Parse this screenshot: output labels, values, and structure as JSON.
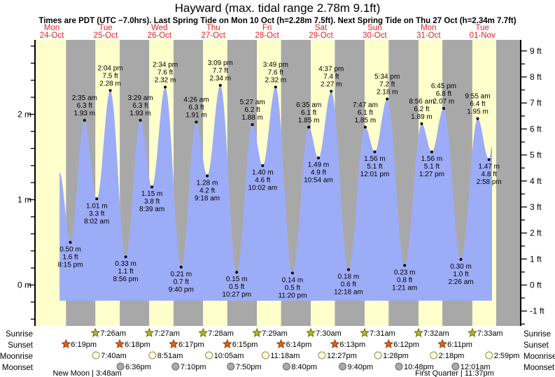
{
  "title": "Hayward (max. tidal range 2.78m 9.1ft)",
  "subtitle": "Times are PDT (UTC −7.0hrs). Last Spring Tide on Mon 10 Oct (h=2.28m 7.5ft). Next Spring Tide on Thu 27 Oct (h=2.34m 7.7ft)",
  "days": [
    {
      "name": "Mon",
      "date": "24-Oct"
    },
    {
      "name": "Tue",
      "date": "25-Oct"
    },
    {
      "name": "Wed",
      "date": "26-Oct"
    },
    {
      "name": "Thu",
      "date": "27-Oct"
    },
    {
      "name": "Fri",
      "date": "28-Oct"
    },
    {
      "name": "Sat",
      "date": "29-Oct"
    },
    {
      "name": "Sun",
      "date": "30-Oct"
    },
    {
      "name": "Mon",
      "date": "31-Oct"
    },
    {
      "name": "Tue",
      "date": "01-Nov"
    }
  ],
  "axes": {
    "left_labels": [
      "0 m",
      "1 m",
      "2 m"
    ],
    "left_values_m": [
      0,
      1,
      2
    ],
    "right_labels": [
      "-1 ft",
      "0 ft",
      "1 ft",
      "2 ft",
      "3 ft",
      "4 ft",
      "5 ft",
      "6 ft",
      "7 ft",
      "8 ft",
      "9 ft"
    ],
    "right_values_ft": [
      -1,
      0,
      1,
      2,
      3,
      4,
      5,
      6,
      7,
      8,
      9
    ]
  },
  "chart_data": {
    "type": "area",
    "title": "Tide height curve for Hayward, Mon 24-Oct through Tue 01-Nov",
    "ylabel_left": "meters",
    "ylabel_right": "feet",
    "ylim_m": [
      -0.47,
      2.87
    ],
    "baseline_m": -0.184,
    "curve_start": {
      "th": 15.43,
      "m": 1.32
    },
    "curve_end": {
      "th": 208.3,
      "m": 1.62
    },
    "extrema": [
      {
        "kind": "low",
        "th": 20.25,
        "m": 0.5,
        "lines": [
          "0.50 m",
          "1.6 ft",
          "8:15 pm"
        ]
      },
      {
        "kind": "high",
        "th": 26.583,
        "m": 1.93,
        "lines": [
          "2:35 am",
          "6.3 ft",
          "1.93 m"
        ]
      },
      {
        "kind": "low",
        "th": 32.033,
        "m": 1.01,
        "lines": [
          "1.01 m",
          "3.3 ft",
          "8:02 am"
        ]
      },
      {
        "kind": "high",
        "th": 38.067,
        "m": 2.28,
        "lines": [
          "2:04 pm",
          "7.5 ft",
          "2.28 m"
        ]
      },
      {
        "kind": "low",
        "th": 44.933,
        "m": 0.33,
        "lines": [
          "0.33 m",
          "1.1 ft",
          "8:56 pm"
        ]
      },
      {
        "kind": "high",
        "th": 51.483,
        "m": 1.93,
        "lines": [
          "3:29 am",
          "6.3 ft",
          "1.93 m"
        ]
      },
      {
        "kind": "low",
        "th": 56.65,
        "m": 1.15,
        "lines": [
          "1.15 m",
          "3.8 ft",
          "8:39 am"
        ]
      },
      {
        "kind": "high",
        "th": 62.567,
        "m": 2.32,
        "lines": [
          "2:34 pm",
          "7.6 ft",
          "2.32 m"
        ]
      },
      {
        "kind": "low",
        "th": 69.667,
        "m": 0.21,
        "lines": [
          "0.21 m",
          "0.7 ft",
          "9:40 pm"
        ]
      },
      {
        "kind": "high",
        "th": 76.433,
        "m": 1.91,
        "lines": [
          "4:26 am",
          "6.3 ft",
          "1.91 m"
        ]
      },
      {
        "kind": "low",
        "th": 81.3,
        "m": 1.28,
        "lines": [
          "1.28 m",
          "4.2 ft",
          "9:18 am"
        ]
      },
      {
        "kind": "high",
        "th": 87.15,
        "m": 2.34,
        "lines": [
          "3:09 pm",
          "7.7 ft",
          "2.34 m"
        ]
      },
      {
        "kind": "low",
        "th": 94.45,
        "m": 0.15,
        "lines": [
          "0.15 m",
          "0.5 ft",
          "10:27 pm"
        ]
      },
      {
        "kind": "high",
        "th": 101.45,
        "m": 1.88,
        "lines": [
          "5:27 am",
          "6.2 ft",
          "1.88 m"
        ]
      },
      {
        "kind": "low",
        "th": 106.033,
        "m": 1.4,
        "lines": [
          "1.40 m",
          "4.6 ft",
          "10:02 am"
        ]
      },
      {
        "kind": "high",
        "th": 111.817,
        "m": 2.32,
        "lines": [
          "3:49 pm",
          "7.6 ft",
          "2.32 m"
        ]
      },
      {
        "kind": "low",
        "th": 119.333,
        "m": 0.14,
        "lines": [
          "0.14 m",
          "0.5 ft",
          "11:20 pm"
        ]
      },
      {
        "kind": "high",
        "th": 126.583,
        "m": 1.85,
        "lines": [
          "6:35 am",
          "6.1 ft",
          "1.85 m"
        ]
      },
      {
        "kind": "low",
        "th": 130.9,
        "m": 1.49,
        "lines": [
          "1.49 m",
          "4.9 ft",
          "10:54 am"
        ]
      },
      {
        "kind": "high",
        "th": 136.617,
        "m": 2.27,
        "lines": [
          "4:37 pm",
          "7.4 ft",
          "2.27 m"
        ]
      },
      {
        "kind": "low",
        "th": 144.3,
        "m": 0.18,
        "lines": [
          "0.18 m",
          "0.6 ft",
          "12:18 am"
        ]
      },
      {
        "kind": "high",
        "th": 151.783,
        "m": 1.85,
        "lines": [
          "7:47 am",
          "6.1 ft",
          "1.85 m"
        ]
      },
      {
        "kind": "low",
        "th": 156.017,
        "m": 1.56,
        "lines": [
          "1.56 m",
          "5.1 ft",
          "12:01 pm"
        ]
      },
      {
        "kind": "high",
        "th": 161.567,
        "m": 2.18,
        "lines": [
          "5:34 pm",
          "7.2 ft",
          "2.18 m"
        ]
      },
      {
        "kind": "low",
        "th": 169.35,
        "m": 0.23,
        "lines": [
          "0.23 m",
          "0.8 ft",
          "1:21 am"
        ]
      },
      {
        "kind": "high",
        "th": 176.933,
        "m": 1.89,
        "lines": [
          "8:56 am",
          "6.2 ft",
          "1.89 m"
        ]
      },
      {
        "kind": "low",
        "th": 181.45,
        "m": 1.56,
        "lines": [
          "1.56 m",
          "5.1 ft",
          "1:27 pm"
        ]
      },
      {
        "kind": "high",
        "th": 186.75,
        "m": 2.07,
        "lines": [
          "6:45 pm",
          "6.8 ft",
          "2.07 m"
        ]
      },
      {
        "kind": "low",
        "th": 194.433,
        "m": 0.3,
        "lines": [
          "0.30 m",
          "1.0 ft",
          "2:26 am"
        ]
      },
      {
        "kind": "high",
        "th": 201.917,
        "m": 1.95,
        "lines": [
          "9:55 am",
          "6.4 ft",
          "1.95 m"
        ]
      },
      {
        "kind": "low",
        "th": 206.967,
        "m": 1.47,
        "lines": [
          "1.47 m",
          "4.8 ft",
          "2:58 pm"
        ]
      }
    ]
  },
  "astro": {
    "row_labels": [
      "Sunrise",
      "Sunset",
      "Moonrise",
      "Moonset"
    ],
    "sunrise": [
      {
        "day": 1,
        "time": "7:26am"
      },
      {
        "day": 2,
        "time": "7:27am"
      },
      {
        "day": 3,
        "time": "7:28am"
      },
      {
        "day": 4,
        "time": "7:29am"
      },
      {
        "day": 5,
        "time": "7:30am"
      },
      {
        "day": 6,
        "time": "7:31am"
      },
      {
        "day": 7,
        "time": "7:32am"
      },
      {
        "day": 8,
        "time": "7:33am"
      }
    ],
    "sunset": [
      {
        "day": 0,
        "time": "6:19pm"
      },
      {
        "day": 1,
        "time": "6:18pm"
      },
      {
        "day": 2,
        "time": "6:17pm"
      },
      {
        "day": 3,
        "time": "6:15pm"
      },
      {
        "day": 4,
        "time": "6:14pm"
      },
      {
        "day": 5,
        "time": "6:13pm"
      },
      {
        "day": 6,
        "time": "6:12pm"
      },
      {
        "day": 7,
        "time": "6:11pm"
      }
    ],
    "moonrise": [
      {
        "day": 1,
        "time": "7:40am"
      },
      {
        "day": 2,
        "time": "8:51am"
      },
      {
        "day": 3,
        "time": "10:05am"
      },
      {
        "day": 4,
        "time": "11:18am"
      },
      {
        "day": 5,
        "time": "12:27pm"
      },
      {
        "day": 6,
        "time": "1:28pm"
      },
      {
        "day": 7,
        "time": "2:18pm"
      },
      {
        "day": 8,
        "time": "2:59pm"
      }
    ],
    "moonset": [
      {
        "day": 1,
        "time": "6:36pm"
      },
      {
        "day": 2,
        "time": "7:10pm"
      },
      {
        "day": 3,
        "time": "7:50pm"
      },
      {
        "day": 4,
        "time": "8:40pm"
      },
      {
        "day": 5,
        "time": "9:40pm"
      },
      {
        "day": 6,
        "time": "10:48pm"
      },
      {
        "day": 8,
        "time": "12:01am"
      }
    ],
    "phases": [
      {
        "text": "New Moon | 3:48am",
        "th": 27.8
      },
      {
        "text": "First Quarter | 11:37pm",
        "th": 191.617
      }
    ]
  },
  "colors": {
    "daylight_band": "#ffffcc",
    "night_band": "#a8a8a8",
    "tide_fill": "#9dacf7",
    "day_label": "#e82222",
    "text": "#000000",
    "sunrise_star_fill": "#b5b52e",
    "sunrise_star_stroke": "#6b6b00",
    "sunset_star_fill": "#e06414",
    "sunset_star_stroke": "#993300",
    "moonrise_circle_fill": "#ffffd9",
    "moonrise_circle_stroke": "#8a8a66",
    "moonset_circle_fill": "#ababab",
    "moonset_circle_stroke": "#666666"
  }
}
